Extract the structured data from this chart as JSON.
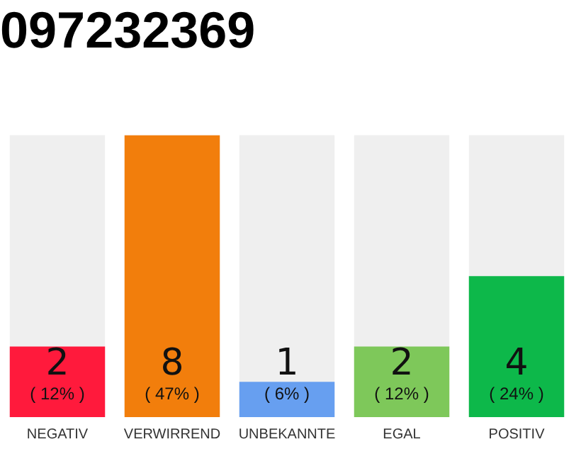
{
  "chart_data": {
    "type": "bar",
    "title": "097232369",
    "categories": [
      "NEGATIV",
      "VERWIRREND",
      "UNBEKANNTE",
      "EGAL",
      "POSITIV"
    ],
    "values": [
      2,
      8,
      1,
      2,
      4
    ],
    "colors": [
      "#ff1a3c",
      "#f27e0c",
      "#679ff0",
      "#7ec85a",
      "#0db84a"
    ],
    "data_labels": true,
    "annotations": [
      "( 12% )",
      "( 47% )",
      "( 6% )",
      "( 12% )",
      "( 24% )"
    ],
    "legend": false,
    "grid": false
  }
}
